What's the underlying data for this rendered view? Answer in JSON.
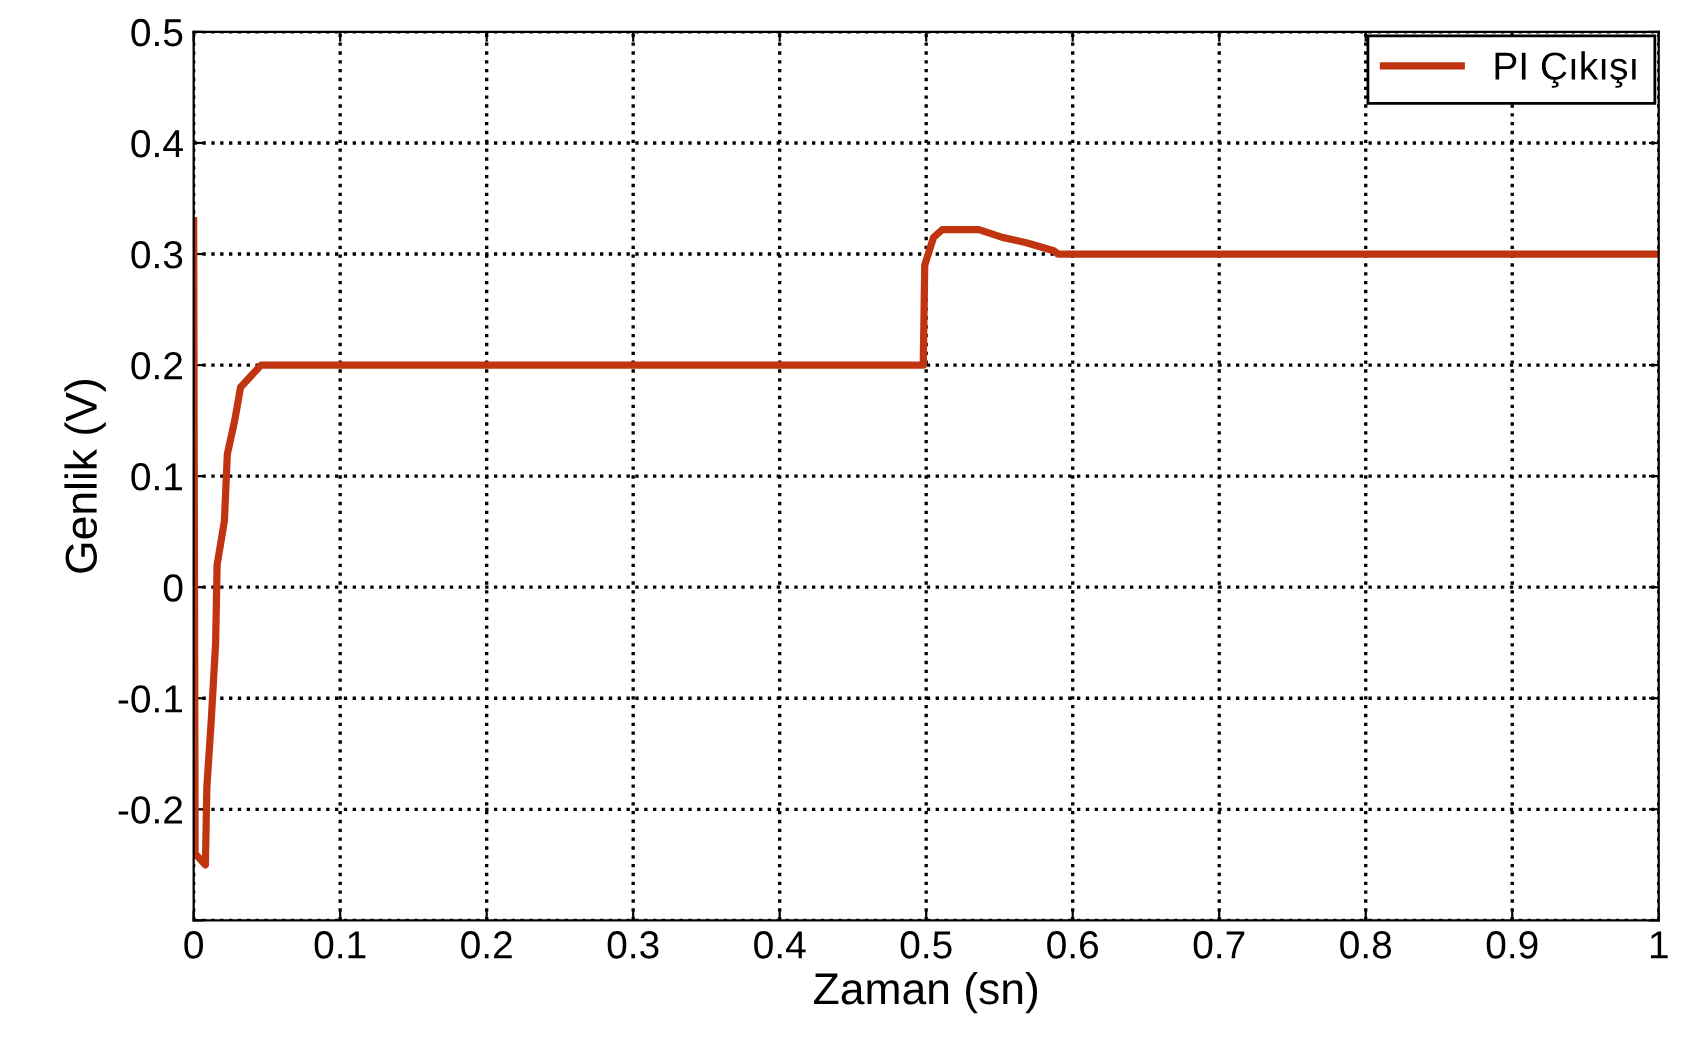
{
  "chart_data": {
    "type": "line",
    "xlabel": "Zaman (sn)",
    "ylabel": "Genlik (V)",
    "xlim": [
      0,
      1
    ],
    "xticks": [
      0,
      0.1,
      0.2,
      0.3,
      0.4,
      0.5,
      0.6,
      0.7,
      0.8,
      0.9,
      1
    ],
    "ylim": [
      -0.3,
      0.5
    ],
    "yticks": [
      {
        "value": -0.3,
        "label": null
      },
      -0.2,
      -0.1,
      0,
      0.1,
      0.2,
      0.3,
      0.4,
      0.5
    ],
    "grid": true,
    "legend": "top right",
    "line_style": "solid",
    "marker": "none",
    "series": [
      {
        "name": "PI Çıkışı",
        "color": "#c0350f",
        "x": [
          0,
          0.001,
          0.008,
          0.009,
          0.012,
          0.015,
          0.016,
          0.021,
          0.023,
          0.028,
          0.032,
          0.039,
          0.046,
          0.498,
          0.499,
          0.505,
          0.511,
          0.536,
          0.552,
          0.569,
          0.587,
          0.59,
          1
        ],
        "values": [
          0.33,
          -0.24,
          -0.25,
          -0.18,
          -0.12,
          -0.05,
          0.02,
          0.06,
          0.12,
          0.15,
          0.18,
          0.19,
          0.2,
          0.2,
          0.29,
          0.315,
          0.322,
          0.322,
          0.315,
          0.31,
          0.303,
          0.3,
          0.3
        ]
      }
    ]
  }
}
